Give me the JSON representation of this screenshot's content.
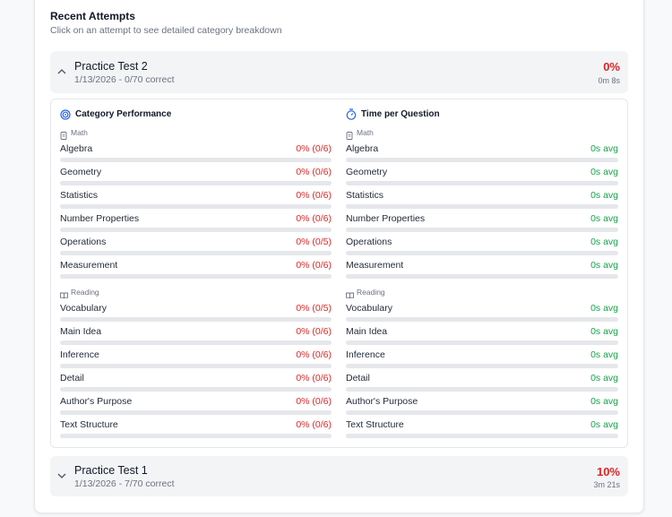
{
  "header": {
    "title": "Recent Attempts",
    "subtitle": "Click on an attempt to see detailed category breakdown"
  },
  "attempts": [
    {
      "name": "Practice Test 2",
      "summary": "1/13/2026 - 0/70 correct",
      "score": "0%",
      "time": "0m 8s",
      "panels": [
        {
          "title": "Category Performance",
          "groups": [
            {
              "name": "Math",
              "rows": [
                {
                  "label": "Algebra",
                  "value": "0% (0/6)"
                },
                {
                  "label": "Geometry",
                  "value": "0% (0/6)"
                },
                {
                  "label": "Statistics",
                  "value": "0% (0/6)"
                },
                {
                  "label": "Number Properties",
                  "value": "0% (0/6)"
                },
                {
                  "label": "Operations",
                  "value": "0% (0/5)"
                },
                {
                  "label": "Measurement",
                  "value": "0% (0/6)"
                }
              ]
            },
            {
              "name": "Reading",
              "rows": [
                {
                  "label": "Vocabulary",
                  "value": "0% (0/5)"
                },
                {
                  "label": "Main Idea",
                  "value": "0% (0/6)"
                },
                {
                  "label": "Inference",
                  "value": "0% (0/6)"
                },
                {
                  "label": "Detail",
                  "value": "0% (0/6)"
                },
                {
                  "label": "Author's Purpose",
                  "value": "0% (0/6)"
                },
                {
                  "label": "Text Structure",
                  "value": "0% (0/6)"
                }
              ]
            }
          ]
        },
        {
          "title": "Time per Question",
          "groups": [
            {
              "name": "Math",
              "rows": [
                {
                  "label": "Algebra",
                  "value": "0s avg"
                },
                {
                  "label": "Geometry",
                  "value": "0s avg"
                },
                {
                  "label": "Statistics",
                  "value": "0s avg"
                },
                {
                  "label": "Number Properties",
                  "value": "0s avg"
                },
                {
                  "label": "Operations",
                  "value": "0s avg"
                },
                {
                  "label": "Measurement",
                  "value": "0s avg"
                }
              ]
            },
            {
              "name": "Reading",
              "rows": [
                {
                  "label": "Vocabulary",
                  "value": "0s avg"
                },
                {
                  "label": "Main Idea",
                  "value": "0s avg"
                },
                {
                  "label": "Inference",
                  "value": "0s avg"
                },
                {
                  "label": "Detail",
                  "value": "0s avg"
                },
                {
                  "label": "Author's Purpose",
                  "value": "0s avg"
                },
                {
                  "label": "Text Structure",
                  "value": "0s avg"
                }
              ]
            }
          ]
        }
      ]
    },
    {
      "name": "Practice Test 1",
      "summary": "1/13/2026 - 7/70 correct",
      "score": "10%",
      "time": "3m 21s"
    }
  ]
}
